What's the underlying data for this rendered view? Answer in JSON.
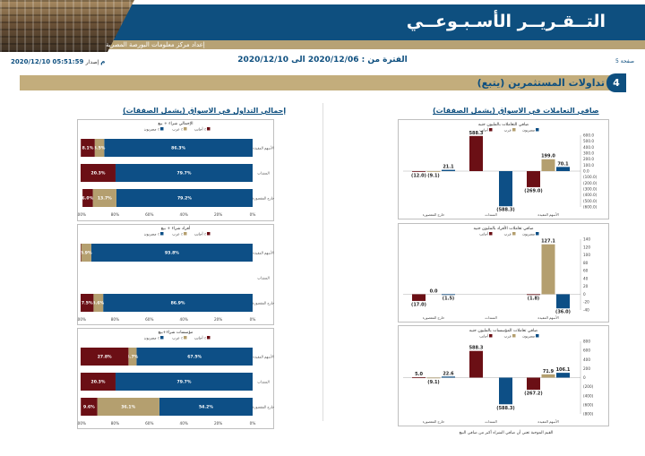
{
  "header": {
    "title": "التــقـريــر الأسـبـوعــي",
    "subtitle": "إعداد مركز معلومات البورصة المصرية",
    "page": "صفحة 5",
    "period": "الفترة من : 2020/12/06 الى 2020/12/10",
    "issued": "إصدار ",
    "issued_date": "2020/12/10 05:51:59 م"
  },
  "section": {
    "number": "4",
    "title": "تداولات المستثمرين (يتبع)"
  },
  "left_panel_title": "إجمالي التداول في الاسواق (يشمل الصفقات)",
  "right_panel_title": "صافي التعاملات في الاسواق (يشمل الصفقات)",
  "footnote": "القيم الموجبة تعني أن صافي الشراء أكبر من صافي البيع",
  "colors": {
    "egyptian": "#0d4f86",
    "arab": "#b49f6f",
    "foreign": "#6b0f15"
  },
  "legend": {
    "egyptian": "مصريون ٪",
    "arab": "عرب ٪",
    "foreign": "أجانب ٪"
  },
  "value_legend": {
    "egyptian": "مصريون",
    "arab": "عرب",
    "foreign": "أجانب"
  },
  "row_labels": [
    "الأسهم المقيدة",
    "السندات",
    "خارج المقصورة"
  ],
  "pct_ticks": [
    "0%",
    "20%",
    "40%",
    "60%",
    "80%",
    "100%"
  ],
  "chart_data": [
    {
      "type": "bar",
      "orientation": "horizontal-stacked-100",
      "title": "الإجمالي شراء + بيع",
      "categories": [
        "الأسهم المقيدة",
        "السندات",
        "خارج المقصورة"
      ],
      "series": [
        {
          "name": "مصريون ٪",
          "values": [
            86.3,
            79.7,
            79.2
          ],
          "labels": [
            "86.3%",
            "79.7%",
            "79.2%"
          ]
        },
        {
          "name": "عرب ٪",
          "values": [
            5.5,
            0.0,
            13.7
          ],
          "labels": [
            "5.5%",
            "",
            "13.7%"
          ]
        },
        {
          "name": "أجانب ٪",
          "values": [
            8.1,
            20.3,
            6.0
          ],
          "labels": [
            "8.1%",
            "20.3%",
            "6.0%"
          ]
        }
      ]
    },
    {
      "type": "bar",
      "orientation": "horizontal-stacked-100",
      "title": "أفراد شراء + بيع",
      "categories": [
        "الأسهم المقيدة",
        "السندات",
        "خارج المقصورة"
      ],
      "series": [
        {
          "name": "مصريون ٪",
          "values": [
            93.8,
            0.0,
            86.9
          ],
          "labels": [
            "93.8%",
            "",
            "86.9%"
          ]
        },
        {
          "name": "عرب ٪",
          "values": [
            5.9,
            0.0,
            5.6
          ],
          "labels": [
            "5.9%",
            "",
            "5.6%"
          ]
        },
        {
          "name": "أجانب ٪",
          "values": [
            0.3,
            0.0,
            7.5
          ],
          "labels": [
            "",
            "",
            "7.5%"
          ]
        }
      ]
    },
    {
      "type": "bar",
      "orientation": "horizontal-stacked-100",
      "title": "مؤسسات شراء+بيع",
      "categories": [
        "الأسهم المقيدة",
        "السندات",
        "خارج المقصورة"
      ],
      "series": [
        {
          "name": "مصريون ٪",
          "values": [
            67.5,
            79.7,
            54.2
          ],
          "labels": [
            "67.5%",
            "79.7%",
            "54.2%"
          ]
        },
        {
          "name": "عرب ٪",
          "values": [
            4.7,
            0.0,
            36.1
          ],
          "labels": [
            "4.7%",
            "",
            "36.1%"
          ]
        },
        {
          "name": "أجانب ٪",
          "values": [
            27.8,
            20.3,
            9.6
          ],
          "labels": [
            "27.8%",
            "20.3%",
            "9.6%"
          ]
        }
      ]
    },
    {
      "type": "bar",
      "orientation": "vertical-grouped",
      "title": "صافي التعاملات بالمليون جنيه",
      "ylim": [
        -600,
        600
      ],
      "yticks": [
        "600.0",
        "500.0",
        "400.0",
        "300.0",
        "200.0",
        "100.0",
        "0.0",
        "(100.0)",
        "(200.0)",
        "(300.0)",
        "(400.0)",
        "(500.0)",
        "(600.0)"
      ],
      "categories": [
        "الأسهم المقيدة",
        "السندات",
        "خارج المقصورة"
      ],
      "series": [
        {
          "name": "أجانب",
          "values": [
            -269.0,
            588.3,
            -12.0
          ],
          "labels": [
            "(269.0)",
            "588.3",
            "(12.0)"
          ]
        },
        {
          "name": "عرب",
          "values": [
            199.0,
            0.0,
            -9.1
          ],
          "labels": [
            "199.0",
            "",
            "(9.1)"
          ]
        },
        {
          "name": "مصريون",
          "values": [
            70.1,
            -588.3,
            21.1
          ],
          "labels": [
            "70.1",
            "(588.3)",
            "21.1"
          ]
        }
      ]
    },
    {
      "type": "bar",
      "orientation": "vertical-grouped",
      "title": "صافي تعاملات الأفراد بالمليون جنيه",
      "ylim": [
        -40,
        140
      ],
      "yticks": [
        "140",
        "120",
        "100",
        "80",
        "60",
        "40",
        "20",
        "0",
        "-20",
        "-40"
      ],
      "categories": [
        "الأسهم المقيدة",
        "السندات",
        "خارج المقصورة"
      ],
      "series": [
        {
          "name": "أجانب",
          "values": [
            -1.8,
            0.0,
            -17.0
          ],
          "labels": [
            "(1.8)",
            "",
            "(17.0)"
          ]
        },
        {
          "name": "عرب",
          "values": [
            127.1,
            0.0,
            0.0
          ],
          "labels": [
            "127.1",
            "",
            "0.0"
          ]
        },
        {
          "name": "مصريون",
          "values": [
            -36.0,
            0.0,
            -1.5
          ],
          "labels": [
            "(36.0)",
            "",
            "(1.5)"
          ]
        }
      ]
    },
    {
      "type": "bar",
      "orientation": "vertical-grouped",
      "title": "صافي تعاملات المؤسسات بالمليون جنيه",
      "ylim": [
        -800,
        800
      ],
      "yticks": [
        "800",
        "600",
        "400",
        "200",
        "0",
        "(200)",
        "(400)",
        "(600)",
        "(800)"
      ],
      "categories": [
        "الأسهم المقيدة",
        "السندات",
        "خارج المقصورة"
      ],
      "series": [
        {
          "name": "أجانب",
          "values": [
            -267.2,
            588.3,
            5.0
          ],
          "labels": [
            "(267.2)",
            "588.3",
            "5.0"
          ]
        },
        {
          "name": "عرب",
          "values": [
            71.9,
            0.0,
            -9.1
          ],
          "labels": [
            "71.9",
            "",
            "(9.1)"
          ]
        },
        {
          "name": "مصريون",
          "values": [
            106.1,
            -588.3,
            22.6
          ],
          "labels": [
            "106.1",
            "(588.3)",
            "22.6"
          ]
        }
      ]
    }
  ]
}
